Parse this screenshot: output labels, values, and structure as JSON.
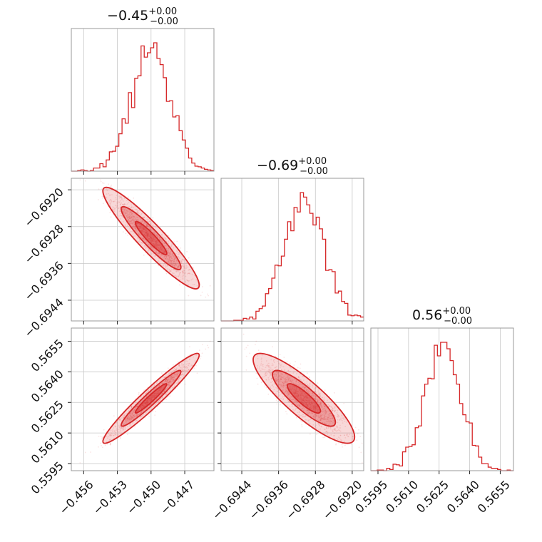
{
  "chart_data": {
    "type": "corner",
    "color": "#d62728",
    "parameters": [
      {
        "title_value": "−0.45",
        "title_plus": "+0.00",
        "title_minus": "−0.00",
        "range": [
          -0.4571,
          -0.4444
        ],
        "ticks": [
          -0.456,
          -0.453,
          -0.45,
          -0.447
        ],
        "tick_labels": [
          "−0.456",
          "−0.453",
          "−0.450",
          "−0.447"
        ],
        "center": -0.45,
        "sigma": 0.00175
      },
      {
        "title_value": "−0.69",
        "title_plus": "+0.00",
        "title_minus": "−0.00",
        "range": [
          -0.69485,
          -0.69175
        ],
        "ticks": [
          -0.6944,
          -0.6936,
          -0.6928,
          -0.692
        ],
        "tick_labels": [
          "−0.6944",
          "−0.6936",
          "−0.6928",
          "−0.6920"
        ],
        "center": -0.69305,
        "sigma": 0.00045
      },
      {
        "title_value": "0.56",
        "title_plus": "+0.00",
        "title_minus": "−0.00",
        "range": [
          0.55915,
          0.56615
        ],
        "ticks": [
          0.5595,
          0.561,
          0.5625,
          0.564,
          0.5655
        ],
        "tick_labels": [
          "0.5595",
          "0.5610",
          "0.5625",
          "0.5640",
          "0.5655"
        ],
        "center": 0.5627,
        "sigma": 0.0009
      }
    ],
    "correlations": {
      "1_0": -0.93,
      "2_0": 0.96,
      "2_1": -0.86
    }
  }
}
